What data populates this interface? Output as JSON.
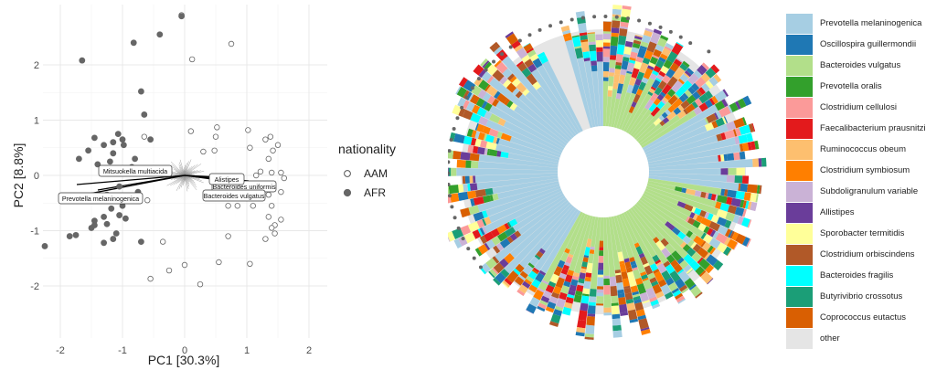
{
  "chart_data": [
    {
      "type": "scatter",
      "xlabel": "PC1 [30.3%]",
      "ylabel": "PC2 [8.8%]",
      "xlim": [
        -2.2,
        2.2
      ],
      "ylim": [
        -2.6,
        2.9
      ],
      "xticks": [
        "-2",
        "-1",
        "0",
        "1",
        "2"
      ],
      "yticks": [
        "-2",
        "-1",
        "0",
        "1",
        "2"
      ],
      "grid": true,
      "legend": {
        "title": "nationality",
        "placement": "right",
        "entries": [
          {
            "label": "AAM",
            "marker": "open-circle"
          },
          {
            "label": "AFR",
            "marker": "filled-circle"
          }
        ]
      },
      "series": [
        {
          "name": "AAM",
          "points": [
            [
              -0.05,
              2.9
            ],
            [
              0.75,
              2.38
            ],
            [
              0.12,
              2.1
            ],
            [
              -0.65,
              0.7
            ],
            [
              0.1,
              0.8
            ],
            [
              0.52,
              0.87
            ],
            [
              0.5,
              0.7
            ],
            [
              1.02,
              0.82
            ],
            [
              0.3,
              0.43
            ],
            [
              0.48,
              0.45
            ],
            [
              1.05,
              0.5
            ],
            [
              1.3,
              0.65
            ],
            [
              1.38,
              0.7
            ],
            [
              1.5,
              0.55
            ],
            [
              1.42,
              0.45
            ],
            [
              1.35,
              0.3
            ],
            [
              1.22,
              0.07
            ],
            [
              1.4,
              0.05
            ],
            [
              1.55,
              0.05
            ],
            [
              1.15,
              0.0
            ],
            [
              1.6,
              -0.05
            ],
            [
              0.5,
              -0.1
            ],
            [
              1.25,
              -0.3
            ],
            [
              1.35,
              -0.35
            ],
            [
              1.55,
              -0.3
            ],
            [
              0.85,
              -0.55
            ],
            [
              1.1,
              -0.55
            ],
            [
              1.4,
              -0.55
            ],
            [
              0.7,
              -0.55
            ],
            [
              1.35,
              -0.75
            ],
            [
              1.45,
              -0.9
            ],
            [
              1.55,
              -0.8
            ],
            [
              1.4,
              -0.95
            ],
            [
              1.45,
              -1.05
            ],
            [
              1.3,
              -1.15
            ],
            [
              0.7,
              -1.1
            ],
            [
              -0.6,
              -0.45
            ],
            [
              -0.35,
              -1.2
            ],
            [
              0.0,
              -1.62
            ],
            [
              0.55,
              -1.57
            ],
            [
              1.05,
              -1.6
            ],
            [
              -0.25,
              -1.72
            ],
            [
              -0.55,
              -1.87
            ],
            [
              0.25,
              -1.97
            ]
          ]
        },
        {
          "name": "AFR",
          "points": [
            [
              -0.05,
              2.88
            ],
            [
              -0.4,
              2.55
            ],
            [
              -0.82,
              2.4
            ],
            [
              -1.65,
              2.08
            ],
            [
              -0.7,
              1.52
            ],
            [
              -0.65,
              1.1
            ],
            [
              -1.07,
              0.75
            ],
            [
              -1.15,
              0.6
            ],
            [
              -1.3,
              0.55
            ],
            [
              -1.0,
              0.65
            ],
            [
              -1.45,
              0.68
            ],
            [
              -0.98,
              0.55
            ],
            [
              -0.55,
              0.65
            ],
            [
              -1.55,
              0.45
            ],
            [
              -1.7,
              0.3
            ],
            [
              -1.4,
              0.2
            ],
            [
              -1.2,
              0.25
            ],
            [
              -0.8,
              0.3
            ],
            [
              -1.15,
              0.4
            ],
            [
              -0.85,
              0.15
            ],
            [
              -1.05,
              -0.2
            ],
            [
              -1.25,
              -0.35
            ],
            [
              -0.75,
              -0.3
            ],
            [
              -1.0,
              -0.55
            ],
            [
              -1.18,
              -0.6
            ],
            [
              -1.3,
              -0.75
            ],
            [
              -1.05,
              -0.72
            ],
            [
              -0.95,
              -0.78
            ],
            [
              -1.5,
              -0.95
            ],
            [
              -1.45,
              -0.82
            ],
            [
              -1.25,
              -0.88
            ],
            [
              -1.1,
              -1.05
            ],
            [
              -1.75,
              -1.08
            ],
            [
              -1.85,
              -1.1
            ],
            [
              -1.3,
              -1.22
            ],
            [
              -1.15,
              -1.15
            ],
            [
              -0.7,
              -1.2
            ],
            [
              -2.25,
              -1.28
            ],
            [
              -1.45,
              -0.9
            ]
          ]
        }
      ],
      "loading_labels": [
        "Mitsuokella multiacida",
        "Prevotella melaninogenica",
        "Bacteroides uniformis",
        "Bacteroides vulgatus",
        "Alistipes"
      ]
    },
    {
      "type": "radial-stacked-bar",
      "legend": {
        "placement": "right",
        "entries": [
          {
            "label": "Prevotella melaninogenica",
            "color": "#a6cee3"
          },
          {
            "label": "Oscillospira guillermondii",
            "color": "#1f78b4"
          },
          {
            "label": "Bacteroides vulgatus",
            "color": "#b2df8a"
          },
          {
            "label": "Prevotella oralis",
            "color": "#33a02c"
          },
          {
            "label": "Clostridium cellulosi",
            "color": "#fb9a99"
          },
          {
            "label": "Faecalibacterium prausnitzii",
            "color": "#e31a1c"
          },
          {
            "label": "Ruminococcus obeum",
            "color": "#fdbf6f"
          },
          {
            "label": "Clostridium symbiosum",
            "color": "#ff7f00"
          },
          {
            "label": "Subdoligranulum variable",
            "color": "#cab2d6"
          },
          {
            "label": "Allistipes",
            "color": "#6a3d9a"
          },
          {
            "label": "Sporobacter termitidis",
            "color": "#ffff99"
          },
          {
            "label": "Clostridium orbiscindens",
            "color": "#b15928"
          },
          {
            "label": "Bacteroides fragilis",
            "color": "#00ffff"
          },
          {
            "label": "Butyrivibrio crossotus",
            "color": "#1b9e77"
          },
          {
            "label": "Coprococcus eutactus",
            "color": "#d95f02"
          },
          {
            "label": "other",
            "color": "#e5e5e5"
          }
        ]
      }
    }
  ]
}
